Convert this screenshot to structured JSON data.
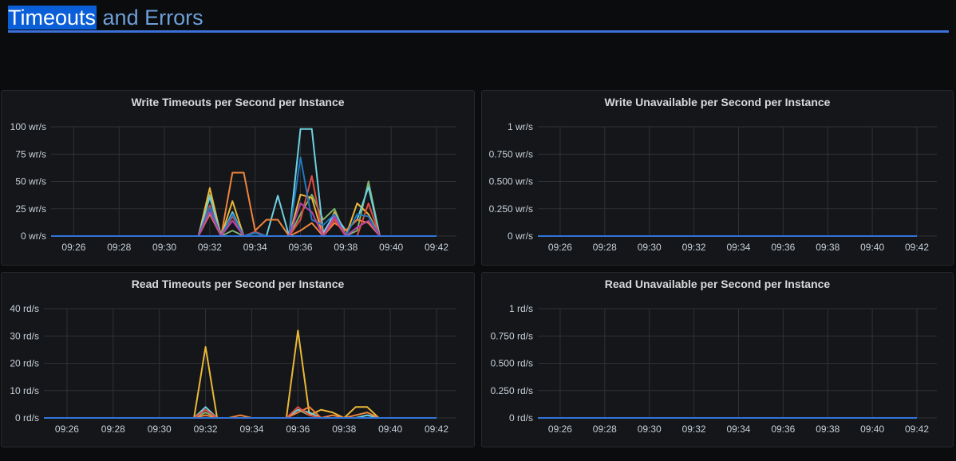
{
  "row": {
    "title_highlight": "Timeouts",
    "title_rest": " and Errors"
  },
  "colors": {
    "series": [
      "#7eb26d",
      "#eab839",
      "#6ed0e0",
      "#ef843c",
      "#e24d42",
      "#1f78c1",
      "#ba43a9",
      "#705da0"
    ],
    "grid": "#2f3136",
    "panel_bg": "#141619",
    "title_accent": "#3d71d9"
  },
  "panels": [
    {
      "title": "Write Timeouts per Second per Instance",
      "chart_data": {
        "type": "line",
        "xlabel": "",
        "ylabel": "",
        "x_ticks": [
          "09:26",
          "09:28",
          "09:30",
          "09:32",
          "09:34",
          "09:36",
          "09:38",
          "09:40",
          "09:42"
        ],
        "y_ticks": [
          "0 wr/s",
          "25 wr/s",
          "50 wr/s",
          "75 wr/s",
          "100 wr/s"
        ],
        "ylim": [
          0,
          100
        ],
        "x": [
          "09:25",
          "09:25:30",
          "09:26",
          "09:26:30",
          "09:27",
          "09:27:30",
          "09:28",
          "09:28:30",
          "09:29",
          "09:29:30",
          "09:30",
          "09:30:30",
          "09:31",
          "09:31:30",
          "09:32",
          "09:32:30",
          "09:33",
          "09:33:30",
          "09:34",
          "09:34:30",
          "09:35",
          "09:35:30",
          "09:36",
          "09:36:30",
          "09:37",
          "09:37:30",
          "09:38",
          "09:38:30",
          "09:39",
          "09:39:30",
          "09:40",
          "09:40:30",
          "09:41",
          "09:41:30",
          "09:42"
        ],
        "series": [
          {
            "values": [
              0,
              0,
              0,
              0,
              0,
              0,
              0,
              0,
              0,
              0,
              0,
              0,
              0,
              0,
              38,
              0,
              5,
              0,
              3,
              0,
              0,
              0,
              20,
              38,
              15,
              25,
              0,
              5,
              50,
              0,
              0,
              0,
              0,
              0,
              0
            ]
          },
          {
            "values": [
              0,
              0,
              0,
              0,
              0,
              0,
              0,
              0,
              0,
              0,
              0,
              0,
              0,
              0,
              44,
              0,
              32,
              0,
              0,
              0,
              0,
              0,
              38,
              35,
              0,
              22,
              0,
              30,
              20,
              0,
              0,
              0,
              0,
              0,
              0
            ]
          },
          {
            "values": [
              0,
              0,
              0,
              0,
              0,
              0,
              0,
              0,
              0,
              0,
              0,
              0,
              0,
              0,
              36,
              0,
              22,
              0,
              0,
              0,
              37,
              0,
              98,
              98,
              3,
              20,
              5,
              15,
              45,
              0,
              0,
              0,
              0,
              0,
              0
            ]
          },
          {
            "values": [
              0,
              0,
              0,
              0,
              0,
              0,
              0,
              0,
              0,
              0,
              0,
              0,
              0,
              0,
              20,
              0,
              58,
              58,
              5,
              15,
              15,
              0,
              5,
              12,
              0,
              12,
              5,
              15,
              12,
              0,
              0,
              0,
              0,
              0,
              0
            ]
          },
          {
            "values": [
              0,
              0,
              0,
              0,
              0,
              0,
              0,
              0,
              0,
              0,
              0,
              0,
              0,
              0,
              28,
              0,
              18,
              0,
              4,
              0,
              0,
              0,
              15,
              55,
              0,
              15,
              0,
              0,
              30,
              0,
              0,
              0,
              0,
              0,
              0
            ]
          },
          {
            "values": [
              0,
              0,
              0,
              0,
              0,
              0,
              0,
              0,
              0,
              0,
              0,
              0,
              0,
              0,
              26,
              0,
              20,
              0,
              3,
              0,
              0,
              0,
              72,
              15,
              10,
              20,
              0,
              20,
              18,
              0,
              0,
              0,
              0,
              0,
              0
            ]
          },
          {
            "values": [
              0,
              0,
              0,
              0,
              0,
              0,
              0,
              0,
              0,
              0,
              0,
              0,
              0,
              0,
              22,
              0,
              14,
              0,
              0,
              0,
              0,
              0,
              30,
              22,
              0,
              18,
              0,
              8,
              14,
              0,
              0,
              0,
              0,
              0,
              0
            ]
          }
        ]
      }
    },
    {
      "title": "Write Unavailable per Second per Instance",
      "chart_data": {
        "type": "line",
        "xlabel": "",
        "ylabel": "",
        "x_ticks": [
          "09:26",
          "09:28",
          "09:30",
          "09:32",
          "09:34",
          "09:36",
          "09:38",
          "09:40",
          "09:42"
        ],
        "y_ticks": [
          "0 wr/s",
          "0.250 wr/s",
          "0.500 wr/s",
          "0.750 wr/s",
          "1 wr/s"
        ],
        "ylim": [
          0,
          1
        ],
        "x": [
          "09:25",
          "09:42"
        ],
        "series": [
          {
            "values": [
              0,
              0
            ]
          }
        ]
      }
    },
    {
      "title": "Read Timeouts per Second per Instance",
      "chart_data": {
        "type": "line",
        "xlabel": "",
        "ylabel": "",
        "x_ticks": [
          "09:26",
          "09:28",
          "09:30",
          "09:32",
          "09:34",
          "09:36",
          "09:38",
          "09:40",
          "09:42"
        ],
        "y_ticks": [
          "0 rd/s",
          "10 rd/s",
          "20 rd/s",
          "30 rd/s",
          "40 rd/s"
        ],
        "ylim": [
          0,
          40
        ],
        "x": [
          "09:25",
          "09:25:30",
          "09:26",
          "09:26:30",
          "09:27",
          "09:27:30",
          "09:28",
          "09:28:30",
          "09:29",
          "09:29:30",
          "09:30",
          "09:30:30",
          "09:31",
          "09:31:30",
          "09:32",
          "09:32:30",
          "09:33",
          "09:33:30",
          "09:34",
          "09:34:30",
          "09:35",
          "09:35:30",
          "09:36",
          "09:36:30",
          "09:37",
          "09:37:30",
          "09:38",
          "09:38:30",
          "09:39",
          "09:39:30",
          "09:40",
          "09:40:30",
          "09:41",
          "09:41:30",
          "09:42"
        ],
        "series": [
          {
            "values": [
              0,
              0,
              0,
              0,
              0,
              0,
              0,
              0,
              0,
              0,
              0,
              0,
              0,
              0,
              2,
              0,
              0,
              0,
              0,
              0,
              0,
              0,
              3,
              1,
              0,
              0,
              0,
              0,
              1,
              0,
              0,
              0,
              0,
              0,
              0
            ]
          },
          {
            "values": [
              0,
              0,
              0,
              0,
              0,
              0,
              0,
              0,
              0,
              0,
              0,
              0,
              0,
              0,
              26,
              0,
              0,
              0,
              0,
              0,
              0,
              0,
              32,
              1,
              3,
              2,
              0,
              4,
              4,
              0,
              0,
              0,
              0,
              0,
              0
            ]
          },
          {
            "values": [
              0,
              0,
              0,
              0,
              0,
              0,
              0,
              0,
              0,
              0,
              0,
              0,
              0,
              0,
              4,
              0,
              0,
              0,
              0,
              0,
              0,
              0,
              3,
              2,
              0,
              0,
              0,
              0,
              1,
              0,
              0,
              0,
              0,
              0,
              0
            ]
          },
          {
            "values": [
              0,
              0,
              0,
              0,
              0,
              0,
              0,
              0,
              0,
              0,
              0,
              0,
              0,
              0,
              1,
              0,
              0,
              1,
              0,
              0,
              0,
              0,
              2,
              4,
              0,
              1,
              0,
              1,
              2,
              0,
              0,
              0,
              0,
              0,
              0
            ]
          },
          {
            "values": [
              0,
              0,
              0,
              0,
              0,
              0,
              0,
              0,
              0,
              0,
              0,
              0,
              0,
              0,
              3,
              0,
              0,
              0,
              0,
              0,
              0,
              0,
              4,
              1,
              0,
              0,
              0,
              0,
              0,
              0,
              0,
              0,
              0,
              0,
              0
            ]
          }
        ]
      }
    },
    {
      "title": "Read Unavailable per Second per Instance",
      "chart_data": {
        "type": "line",
        "xlabel": "",
        "ylabel": "",
        "x_ticks": [
          "09:26",
          "09:28",
          "09:30",
          "09:32",
          "09:34",
          "09:36",
          "09:38",
          "09:40",
          "09:42"
        ],
        "y_ticks": [
          "0 rd/s",
          "0.250 rd/s",
          "0.500 rd/s",
          "0.750 rd/s",
          "1 rd/s"
        ],
        "ylim": [
          0,
          1
        ],
        "x": [
          "09:25",
          "09:42"
        ],
        "series": [
          {
            "values": [
              0,
              0
            ]
          }
        ]
      }
    }
  ]
}
